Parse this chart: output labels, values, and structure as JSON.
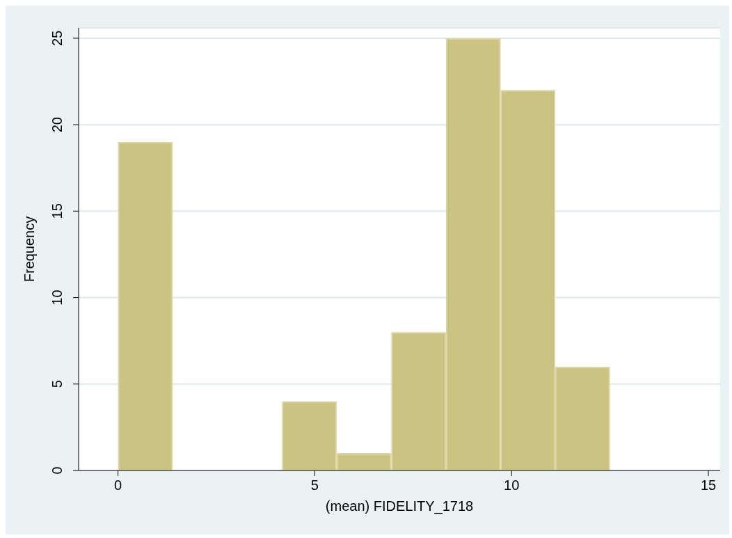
{
  "chart_data": {
    "type": "histogram",
    "xlabel": "(mean) FIDELITY_1718",
    "ylabel": "Frequency",
    "bins": [
      0,
      1.389,
      2.778,
      4.167,
      5.556,
      6.944,
      8.333,
      9.722,
      11.111,
      12.5
    ],
    "values": [
      19,
      0,
      0,
      4,
      1,
      8,
      25,
      22,
      6
    ],
    "color": "#cbc382",
    "xlim": [
      -1,
      15.3
    ],
    "xticks": [
      0,
      5,
      10,
      15
    ],
    "ylim": [
      0,
      25.6
    ],
    "yticks": [
      0,
      5,
      10,
      15,
      20,
      25
    ],
    "grid": "y"
  }
}
